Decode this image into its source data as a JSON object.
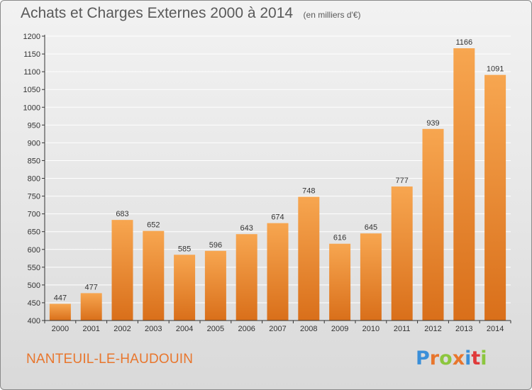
{
  "header": {
    "title": "Achats et Charges Externes 2000 à 2014",
    "subtitle": "(en milliers d'€)"
  },
  "footer": {
    "town": "NANTEUIL-LE-HAUDOUIN",
    "brand": "Proxiti",
    "brand_letters": [
      {
        "char": "P",
        "color": "#3a8fd9"
      },
      {
        "char": "r",
        "color": "#e8762d"
      },
      {
        "char": "o",
        "color": "#8cc63e"
      },
      {
        "char": "x",
        "color": "#e8762d"
      },
      {
        "char": "i",
        "color": "#3a8fd9"
      },
      {
        "char": "t",
        "color": "#e03a3a"
      },
      {
        "char": "i",
        "color": "#8cc63e"
      }
    ]
  },
  "colors": {
    "bar_light": "#f7a650",
    "bar_dark": "#d96f1a",
    "grid": "#ffffff",
    "axis": "#333333"
  },
  "chart_data": {
    "type": "bar",
    "title": "Achats et Charges Externes 2000 à 2014",
    "subtitle": "(en milliers d'€)",
    "xlabel": "",
    "ylabel": "",
    "ylim": [
      400,
      1200
    ],
    "ytick_step": 50,
    "grid": true,
    "categories": [
      "2000",
      "2001",
      "2002",
      "2003",
      "2004",
      "2005",
      "2006",
      "2007",
      "2008",
      "2009",
      "2010",
      "2011",
      "2012",
      "2013",
      "2014"
    ],
    "values": [
      447,
      477,
      683,
      652,
      585,
      596,
      643,
      674,
      748,
      616,
      645,
      777,
      939,
      1166,
      1091
    ]
  }
}
